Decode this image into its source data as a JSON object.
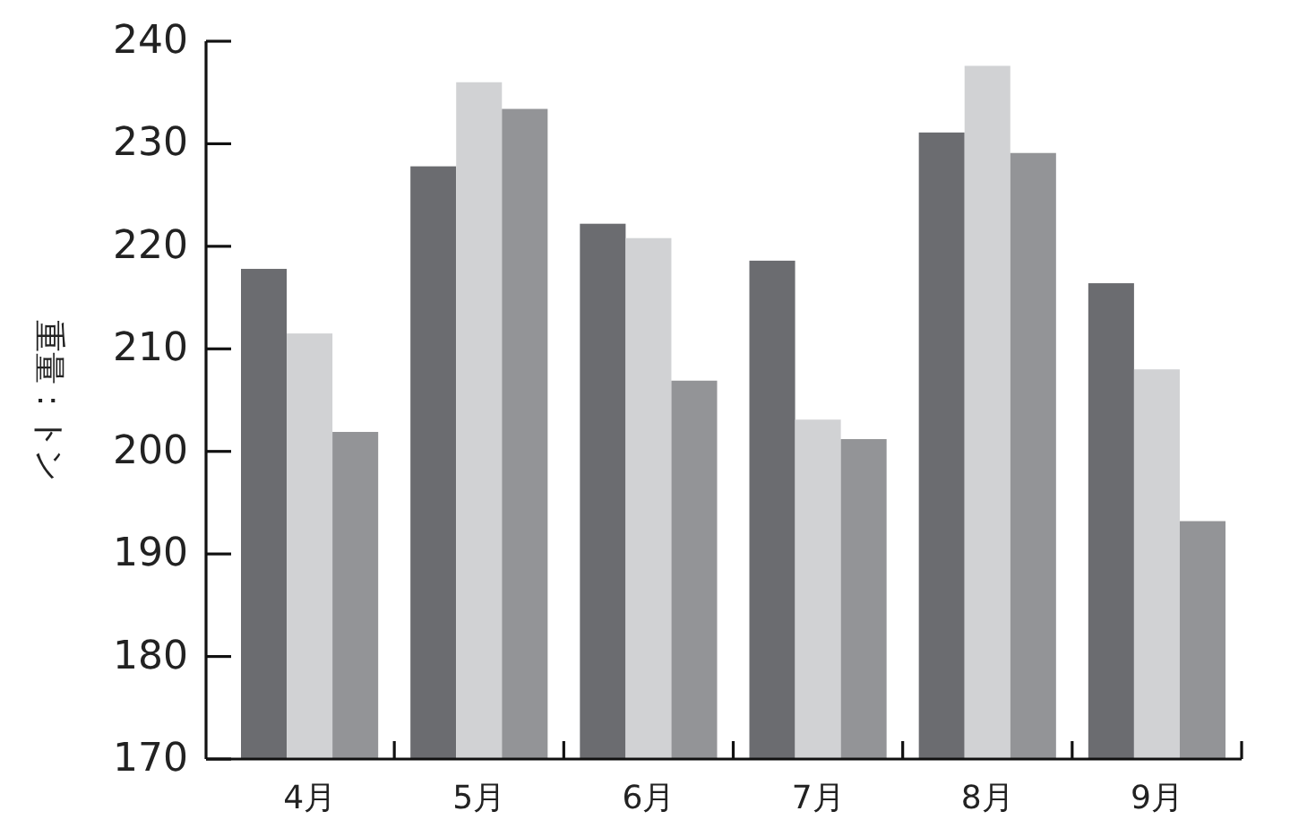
{
  "chart_data": {
    "type": "bar",
    "ylabel": "重量：トン",
    "categories": [
      "4月",
      "5月",
      "6月",
      "7月",
      "8月",
      "9月"
    ],
    "series": [
      {
        "color": "#6b6c70",
        "values": [
          217.8,
          227.8,
          222.2,
          218.6,
          231.1,
          216.4
        ]
      },
      {
        "color": "#d1d2d4",
        "values": [
          211.5,
          236.0,
          220.8,
          203.1,
          237.6,
          208.0
        ]
      },
      {
        "color": "#939497",
        "values": [
          201.9,
          233.4,
          206.9,
          201.2,
          229.1,
          193.2
        ]
      }
    ],
    "ylim": [
      170,
      240
    ],
    "yticks": [
      170,
      180,
      190,
      200,
      210,
      220,
      230,
      240
    ]
  }
}
